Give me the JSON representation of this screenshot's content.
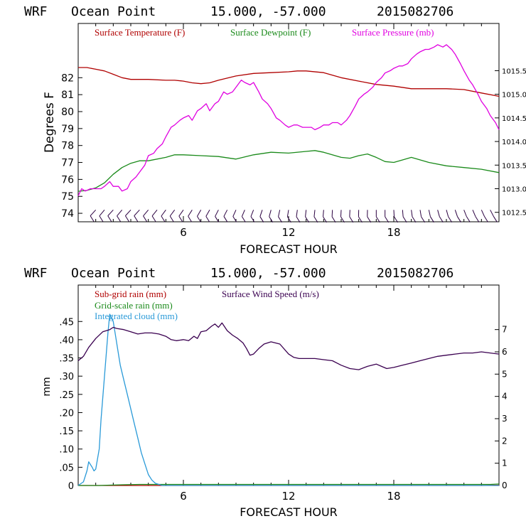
{
  "colors": {
    "temperature": "#b00000",
    "dewpoint": "#1a8a1a",
    "pressure": "#e000e0",
    "subgrid": "#b00000",
    "gridscale": "#1a8a1a",
    "cloud": "#2a9ad8",
    "wind": "#3a0050",
    "barb": "#2a0040",
    "axis": "#000000"
  },
  "chart_data": [
    {
      "type": "line",
      "header": {
        "model": "WRF",
        "location": "Ocean Point",
        "coords": "15.000, -57.000",
        "init": "2015082706"
      },
      "xlabel": "FORECAST HOUR",
      "ylabel": "Degrees F",
      "xlim": [
        0,
        24
      ],
      "xticks": [
        6,
        12,
        18
      ],
      "ylim": [
        73.5,
        85.2
      ],
      "yticks": [
        74,
        75,
        76,
        77,
        78,
        79,
        80,
        81,
        82
      ],
      "y2lim": [
        1012.3,
        1016.5
      ],
      "y2ticks": [
        1012.5,
        1013.0,
        1013.5,
        1014.0,
        1014.5,
        1015.0,
        1015.5
      ],
      "legend": [
        "Surface Temperature (F)",
        "Surface Dewpoint (F)",
        "Surface Pressure (mb)"
      ],
      "series": [
        {
          "name": "Surface Temperature (F)",
          "axis": "left",
          "x": [
            0,
            0.5,
            1,
            1.5,
            2,
            2.5,
            3,
            4,
            5,
            5.5,
            6,
            6.5,
            7,
            7.5,
            8,
            9,
            10,
            11,
            12,
            12.5,
            13,
            14,
            15,
            16,
            17,
            18,
            19,
            20,
            21,
            22,
            23,
            24
          ],
          "values": [
            82.6,
            82.6,
            82.5,
            82.4,
            82.2,
            82.0,
            81.9,
            81.9,
            81.85,
            81.85,
            81.8,
            81.7,
            81.65,
            81.7,
            81.85,
            82.1,
            82.25,
            82.3,
            82.35,
            82.4,
            82.4,
            82.3,
            82.0,
            81.8,
            81.6,
            81.5,
            81.35,
            81.35,
            81.35,
            81.3,
            81.1,
            80.9
          ]
        },
        {
          "name": "Surface Dewpoint (F)",
          "axis": "left",
          "x": [
            0,
            0.5,
            1,
            1.5,
            2,
            2.5,
            3,
            3.5,
            4,
            5,
            5.5,
            6,
            7,
            8,
            9,
            10,
            11,
            12,
            13,
            13.5,
            14,
            15,
            15.5,
            16,
            16.5,
            17,
            17.5,
            18,
            18.5,
            19,
            20,
            21,
            22,
            23,
            24
          ],
          "values": [
            75.3,
            75.35,
            75.5,
            75.8,
            76.3,
            76.7,
            76.95,
            77.1,
            77.1,
            77.3,
            77.45,
            77.45,
            77.4,
            77.35,
            77.2,
            77.45,
            77.6,
            77.55,
            77.65,
            77.7,
            77.6,
            77.3,
            77.25,
            77.4,
            77.5,
            77.3,
            77.05,
            77.0,
            77.15,
            77.3,
            77.0,
            76.8,
            76.7,
            76.6,
            76.4
          ]
        },
        {
          "name": "Surface Pressure (mb)",
          "axis": "right",
          "x": [
            0,
            0.2,
            0.4,
            0.7,
            1,
            1.3,
            1.5,
            1.8,
            2,
            2.3,
            2.5,
            2.8,
            3,
            3.3,
            3.5,
            3.8,
            4,
            4.3,
            4.5,
            4.8,
            5,
            5.3,
            5.5,
            5.8,
            6,
            6.3,
            6.5,
            6.8,
            7,
            7.3,
            7.5,
            7.8,
            8,
            8.3,
            8.5,
            8.8,
            9,
            9.3,
            9.5,
            9.8,
            10,
            10.3,
            10.5,
            10.8,
            11,
            11.3,
            11.5,
            11.8,
            12,
            12.3,
            12.5,
            12.8,
            13,
            13.3,
            13.5,
            13.8,
            14,
            14.3,
            14.5,
            14.8,
            15,
            15.3,
            15.5,
            15.8,
            16,
            16.3,
            16.5,
            16.8,
            17,
            17.3,
            17.5,
            17.8,
            18,
            18.3,
            18.5,
            18.8,
            19,
            19.3,
            19.5,
            19.8,
            20,
            20.3,
            20.5,
            20.8,
            21,
            21.3,
            21.5,
            21.8,
            22,
            22.3,
            22.5,
            22.8,
            23,
            23.3,
            23.5,
            23.8,
            24
          ],
          "values": [
            1012.85,
            1013.0,
            1012.95,
            1013.0,
            1013.0,
            1013.0,
            1013.05,
            1013.15,
            1013.05,
            1013.05,
            1012.95,
            1013.0,
            1013.15,
            1013.25,
            1013.35,
            1013.5,
            1013.7,
            1013.75,
            1013.85,
            1013.95,
            1014.1,
            1014.3,
            1014.35,
            1014.45,
            1014.5,
            1014.55,
            1014.45,
            1014.65,
            1014.7,
            1014.8,
            1014.65,
            1014.8,
            1014.85,
            1015.05,
            1015.0,
            1015.05,
            1015.15,
            1015.3,
            1015.25,
            1015.2,
            1015.25,
            1015.05,
            1014.9,
            1014.8,
            1014.7,
            1014.5,
            1014.45,
            1014.35,
            1014.3,
            1014.35,
            1014.35,
            1014.3,
            1014.3,
            1014.3,
            1014.25,
            1014.3,
            1014.35,
            1014.35,
            1014.4,
            1014.4,
            1014.35,
            1014.45,
            1014.55,
            1014.75,
            1014.9,
            1015.0,
            1015.05,
            1015.15,
            1015.25,
            1015.35,
            1015.45,
            1015.5,
            1015.55,
            1015.6,
            1015.6,
            1015.65,
            1015.75,
            1015.85,
            1015.9,
            1015.95,
            1015.95,
            1016.0,
            1016.05,
            1016.0,
            1016.05,
            1015.95,
            1015.85,
            1015.65,
            1015.5,
            1015.3,
            1015.2,
            1015.0,
            1014.85,
            1014.7,
            1014.55,
            1014.4,
            1014.25
          ]
        }
      ],
      "wind_barbs": {
        "y": 74.2,
        "x": [
          1.0,
          1.5,
          2.0,
          2.5,
          3.0,
          3.5,
          4.0,
          4.5,
          5.0,
          5.5,
          6.0,
          6.5,
          7.0,
          7.5,
          8.0,
          8.5,
          9.0,
          9.5,
          10.0,
          10.5,
          11.0,
          11.5,
          12.0,
          12.5,
          13.0,
          13.5,
          14.0,
          14.5,
          15.0,
          15.5,
          16.0,
          16.5,
          17.0,
          17.5,
          18.0,
          18.5,
          19.0,
          19.5,
          20.0,
          20.5,
          21.0,
          21.5,
          22.0,
          22.5,
          23.0,
          23.5
        ],
        "direction_deg": [
          60,
          62,
          60,
          62,
          60,
          60,
          62,
          63,
          65,
          65,
          66,
          68,
          70,
          70,
          72,
          72,
          74,
          75,
          76,
          78,
          80,
          82,
          84,
          85,
          86,
          86,
          87,
          88,
          88,
          88,
          89,
          89,
          90,
          90,
          92,
          93,
          95,
          96,
          98,
          100,
          100,
          102,
          104,
          105,
          106,
          108
        ]
      }
    },
    {
      "type": "line",
      "header": {
        "model": "WRF",
        "location": "Ocean Point",
        "coords": "15.000, -57.000",
        "init": "2015082706"
      },
      "xlabel": "FORECAST HOUR",
      "ylabel": "mm",
      "xlim": [
        0,
        24
      ],
      "xticks": [
        6,
        12,
        18
      ],
      "ylim": [
        0,
        0.55
      ],
      "yticks": [
        0,
        0.05,
        0.1,
        0.15,
        0.2,
        0.25,
        0.3,
        0.35,
        0.4,
        0.45
      ],
      "ytick_labels": [
        "0",
        ".05",
        ".10",
        ".15",
        ".20",
        ".25",
        ".30",
        ".35",
        ".40",
        ".45"
      ],
      "y2lim": [
        0,
        9
      ],
      "y2ticks": [
        0,
        1,
        2,
        3,
        4,
        5,
        6,
        7
      ],
      "legend": [
        "Sub-grid rain (mm)",
        "Grid-scale rain (mm)",
        "Integrated cloud (mm)",
        "Surface Wind Speed (m/s)"
      ],
      "series": [
        {
          "name": "Sub-grid rain (mm)",
          "axis": "left",
          "x": [
            0,
            6,
            12,
            18,
            23,
            24
          ],
          "values": [
            0,
            0,
            0,
            0,
            0,
            0.001
          ]
        },
        {
          "name": "Grid-scale rain (mm)",
          "axis": "left",
          "x": [
            0,
            1.2,
            1.8,
            2.5,
            3.5,
            4.5,
            6,
            12,
            18,
            23.5,
            24
          ],
          "values": [
            0,
            0,
            0.001,
            0.002,
            0.003,
            0.003,
            0.003,
            0.003,
            0.003,
            0.003,
            0.004
          ]
        },
        {
          "name": "Integrated cloud (mm)",
          "axis": "left",
          "x": [
            0,
            0.3,
            0.5,
            0.6,
            0.8,
            0.9,
            1.0,
            1.2,
            1.3,
            1.5,
            1.7,
            1.8,
            1.9,
            2.0,
            2.1,
            2.3,
            2.4,
            2.6,
            2.8,
            3.0,
            3.2,
            3.4,
            3.6,
            3.8,
            4.0,
            4.2,
            4.4,
            4.6,
            4.8,
            5.0,
            6,
            12,
            18,
            24
          ],
          "values": [
            0.0,
            0.01,
            0.04,
            0.065,
            0.05,
            0.04,
            0.045,
            0.1,
            0.18,
            0.3,
            0.42,
            0.47,
            0.46,
            0.45,
            0.42,
            0.36,
            0.33,
            0.29,
            0.25,
            0.21,
            0.17,
            0.13,
            0.09,
            0.06,
            0.03,
            0.015,
            0.006,
            0.003,
            0.0,
            0.0,
            0.0,
            0.0,
            0.0,
            0.0
          ]
        },
        {
          "name": "Surface Wind Speed (m/s)",
          "axis": "right",
          "x": [
            0,
            0.3,
            0.6,
            1.0,
            1.4,
            1.8,
            2.0,
            2.2,
            2.6,
            3.0,
            3.4,
            3.8,
            4.2,
            4.6,
            5.0,
            5.3,
            5.6,
            6.0,
            6.3,
            6.6,
            6.8,
            7.0,
            7.3,
            7.6,
            7.8,
            8.0,
            8.2,
            8.5,
            8.8,
            9.1,
            9.4,
            9.6,
            9.8,
            10.0,
            10.3,
            10.6,
            11.0,
            11.5,
            12.0,
            12.3,
            12.6,
            13.0,
            13.5,
            14.0,
            14.5,
            15.0,
            15.5,
            16.0,
            16.5,
            17.0,
            17.3,
            17.6,
            18.0,
            18.5,
            19.0,
            19.5,
            20.0,
            20.5,
            21.0,
            21.5,
            22.0,
            22.5,
            23.0,
            23.5,
            24.0
          ],
          "values": [
            5.6,
            5.8,
            6.2,
            6.6,
            6.9,
            7.0,
            7.1,
            7.05,
            7.0,
            6.9,
            6.8,
            6.85,
            6.85,
            6.8,
            6.7,
            6.55,
            6.5,
            6.55,
            6.5,
            6.7,
            6.6,
            6.9,
            6.95,
            7.15,
            7.25,
            7.1,
            7.3,
            6.95,
            6.75,
            6.6,
            6.4,
            6.15,
            5.85,
            5.9,
            6.15,
            6.35,
            6.45,
            6.35,
            5.9,
            5.75,
            5.7,
            5.7,
            5.7,
            5.65,
            5.6,
            5.4,
            5.25,
            5.2,
            5.35,
            5.45,
            5.35,
            5.25,
            5.3,
            5.4,
            5.5,
            5.6,
            5.7,
            5.8,
            5.85,
            5.9,
            5.95,
            5.95,
            6.0,
            5.95,
            5.9
          ]
        }
      ]
    }
  ]
}
